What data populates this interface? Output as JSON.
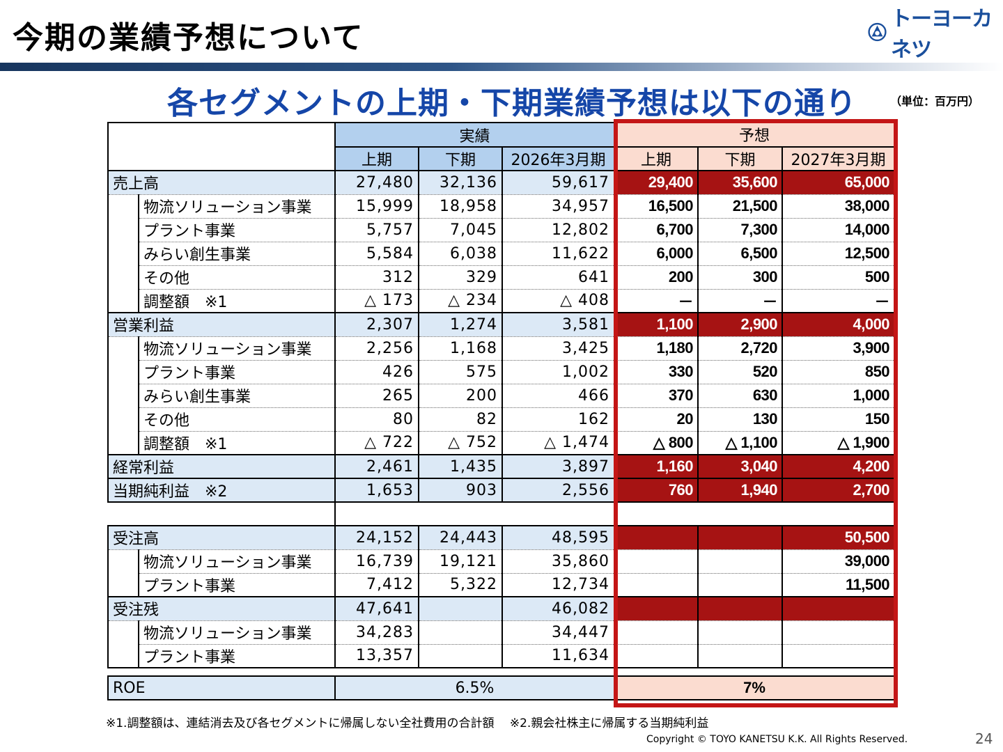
{
  "header": {
    "title": "今期の業績予想について",
    "logo_text": "トーヨーカネツ",
    "subtitle": "各セグメントの上期・下期業績予想は以下の通り",
    "unit": "（単位：百万円）"
  },
  "table": {
    "actual_header": "実績",
    "forecast_header": "予想",
    "columns": [
      "上期",
      "下期",
      "2026年3月期",
      "上期",
      "下期",
      "2027年3月期"
    ],
    "rows": [
      {
        "label": "売上高",
        "main": true,
        "values": [
          "27,480",
          "32,136",
          "59,617",
          "29,400",
          "35,600",
          "65,000"
        ]
      },
      {
        "label": "物流ソリューション事業",
        "main": false,
        "values": [
          "15,999",
          "18,958",
          "34,957",
          "16,500",
          "21,500",
          "38,000"
        ]
      },
      {
        "label": "プラント事業",
        "main": false,
        "values": [
          "5,757",
          "7,045",
          "12,802",
          "6,700",
          "7,300",
          "14,000"
        ]
      },
      {
        "label": "みらい創生事業",
        "main": false,
        "values": [
          "5,584",
          "6,038",
          "11,622",
          "6,000",
          "6,500",
          "12,500"
        ]
      },
      {
        "label": "その他",
        "main": false,
        "values": [
          "312",
          "329",
          "641",
          "200",
          "300",
          "500"
        ]
      },
      {
        "label": "調整額　※1",
        "main": false,
        "values": [
          "△ 173",
          "△ 234",
          "△ 408",
          "－",
          "－",
          "－"
        ]
      },
      {
        "label": "営業利益",
        "main": true,
        "values": [
          "2,307",
          "1,274",
          "3,581",
          "1,100",
          "2,900",
          "4,000"
        ]
      },
      {
        "label": "物流ソリューション事業",
        "main": false,
        "values": [
          "2,256",
          "1,168",
          "3,425",
          "1,180",
          "2,720",
          "3,900"
        ]
      },
      {
        "label": "プラント事業",
        "main": false,
        "values": [
          "426",
          "575",
          "1,002",
          "330",
          "520",
          "850"
        ]
      },
      {
        "label": "みらい創生事業",
        "main": false,
        "values": [
          "265",
          "200",
          "466",
          "370",
          "630",
          "1,000"
        ]
      },
      {
        "label": "その他",
        "main": false,
        "values": [
          "80",
          "82",
          "162",
          "20",
          "130",
          "150"
        ]
      },
      {
        "label": "調整額　※1",
        "main": false,
        "values": [
          "△ 722",
          "△ 752",
          "△ 1,474",
          "△ 800",
          "△ 1,100",
          "△ 1,900"
        ]
      },
      {
        "label": "経常利益",
        "main": true,
        "values": [
          "2,461",
          "1,435",
          "3,897",
          "1,160",
          "3,040",
          "4,200"
        ]
      },
      {
        "label": "当期純利益　※2",
        "main": true,
        "values": [
          "1,653",
          "903",
          "2,556",
          "760",
          "1,940",
          "2,700"
        ]
      }
    ],
    "orders": [
      {
        "label": "受注高",
        "main": true,
        "values": [
          "24,152",
          "24,443",
          "48,595",
          "",
          "",
          "50,500"
        ]
      },
      {
        "label": "物流ソリューション事業",
        "main": false,
        "values": [
          "16,739",
          "19,121",
          "35,860",
          "",
          "",
          "39,000"
        ]
      },
      {
        "label": "プラント事業",
        "main": false,
        "values": [
          "7,412",
          "5,322",
          "12,734",
          "",
          "",
          "11,500"
        ]
      },
      {
        "label": "受注残",
        "main": true,
        "values": [
          "47,641",
          "",
          "46,082",
          "",
          "",
          ""
        ]
      },
      {
        "label": "物流ソリューション事業",
        "main": false,
        "values": [
          "34,283",
          "",
          "34,447",
          "",
          "",
          ""
        ]
      },
      {
        "label": "プラント事業",
        "main": false,
        "values": [
          "13,357",
          "",
          "11,634",
          "",
          "",
          ""
        ]
      }
    ],
    "roe": {
      "label": "ROE",
      "actual": "6.5%",
      "forecast": "7%"
    }
  },
  "footer": {
    "footnote": "※1.調整額は、連結消去及び各セグメントに帰属しない全社費用の合計額　 ※2.親会社株主に帰属する当期純利益",
    "copyright": "Copyright ©  TOYO KANETSU K.K. All Rights Reserved.",
    "page": "24"
  },
  "colors": {
    "accent_blue": "#1546a8",
    "forecast_red": "#a61313",
    "frame_red": "#c41616",
    "actual_bg": "#b3d0ee",
    "forecast_bg": "#fbdcd0"
  }
}
